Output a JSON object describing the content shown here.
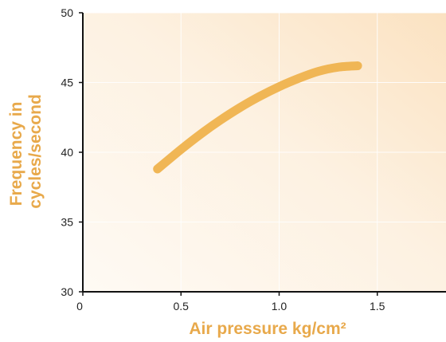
{
  "chart_data": {
    "type": "line",
    "xlabel": "Air pressure kg/cm²",
    "ylabel_lines": [
      "Frequency in",
      "cycles/second"
    ],
    "xlim": [
      0,
      1.85
    ],
    "ylim": [
      30,
      50
    ],
    "x_ticks": [
      0,
      0.5,
      1.0,
      1.5
    ],
    "x_tick_labels": [
      "0",
      "0.5",
      "1.0",
      "1.5"
    ],
    "y_ticks": [
      30,
      35,
      40,
      45,
      50
    ],
    "y_tick_labels": [
      "30",
      "35",
      "40",
      "45",
      "50"
    ],
    "grid": true,
    "series": [
      {
        "x": [
          0.38,
          0.5,
          0.6,
          0.7,
          0.8,
          0.9,
          1.0,
          1.1,
          1.2,
          1.3,
          1.4
        ],
        "y": [
          38.8,
          40.2,
          41.3,
          42.3,
          43.2,
          44.0,
          44.7,
          45.3,
          45.8,
          46.1,
          46.2
        ]
      }
    ],
    "colors": {
      "line": "#f0b655",
      "axis_title": "#e8a94b",
      "background_light": "#fdf6ec",
      "background_warm": "#fbe3c3"
    }
  }
}
